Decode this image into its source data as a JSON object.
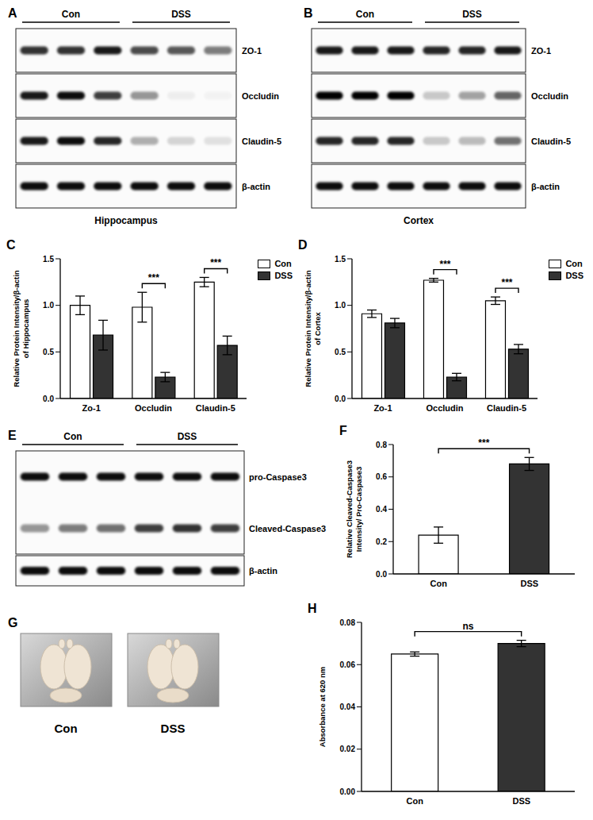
{
  "blots": [
    {
      "panel": "A",
      "groups": [
        "Con",
        "DSS"
      ],
      "caption": "Hippocampus",
      "boxes": [
        [
          {
            "label": "ZO-1",
            "intensity": [
              0.8,
              0.8,
              0.9,
              0.7,
              0.65,
              0.5
            ]
          }
        ],
        [
          {
            "label": "Occludin",
            "intensity": [
              0.9,
              0.95,
              0.75,
              0.4,
              0.05,
              0.03
            ]
          }
        ],
        [
          {
            "label": "Claudin-5",
            "intensity": [
              0.9,
              0.95,
              0.85,
              0.3,
              0.15,
              0.1
            ]
          }
        ],
        [
          {
            "label": "β-actin",
            "intensity": [
              0.95,
              0.95,
              0.95,
              0.95,
              0.95,
              0.95
            ]
          }
        ]
      ]
    },
    {
      "panel": "B",
      "groups": [
        "Con",
        "DSS"
      ],
      "caption": "Cortex",
      "boxes": [
        [
          {
            "label": "ZO-1",
            "intensity": [
              0.9,
              0.9,
              0.9,
              0.85,
              0.85,
              0.9
            ]
          }
        ],
        [
          {
            "label": "Occludin",
            "intensity": [
              1,
              1,
              1,
              0.2,
              0.35,
              0.6
            ]
          }
        ],
        [
          {
            "label": "Claudin-5",
            "intensity": [
              0.85,
              0.85,
              0.85,
              0.2,
              0.25,
              0.55
            ]
          }
        ],
        [
          {
            "label": "β-actin",
            "intensity": [
              0.95,
              0.95,
              0.95,
              0.95,
              0.95,
              0.95
            ]
          }
        ]
      ]
    },
    {
      "panel": "E",
      "groups": [
        "Con",
        "DSS"
      ],
      "boxes": [
        [
          {
            "label": "pro-Caspase3",
            "intensity": [
              0.95,
              0.95,
              0.95,
              0.95,
              0.95,
              0.95
            ]
          },
          {
            "label": "Cleaved-Caspase3",
            "intensity": [
              0.4,
              0.5,
              0.55,
              0.75,
              0.8,
              0.75
            ]
          }
        ],
        [
          {
            "label": "β-actin",
            "intensity": [
              0.95,
              0.95,
              0.95,
              0.95,
              0.95,
              0.95
            ]
          }
        ]
      ]
    }
  ],
  "photos": {
    "panel": "G",
    "labels": [
      "Con",
      "DSS"
    ]
  },
  "chart_data": [
    {
      "title": "C",
      "type": "bar",
      "categories": [
        "Zo-1",
        "Occludin",
        "Claudin-5"
      ],
      "series": [
        {
          "name": "Con",
          "color": "#ffffff",
          "values": [
            1.0,
            0.98,
            1.25
          ],
          "errors": [
            0.1,
            0.16,
            0.05
          ]
        },
        {
          "name": "DSS",
          "color": "#333333",
          "values": [
            0.68,
            0.23,
            0.57
          ],
          "errors": [
            0.16,
            0.05,
            0.1
          ]
        }
      ],
      "y_label": "Relative Protein Intensity/β-actin\nof Hippocampus",
      "ylim": [
        0,
        1.5
      ],
      "yticks": [
        {
          "value": 0,
          "label": "0.0"
        },
        0.5,
        {
          "value": 1,
          "label": "1.0"
        },
        1.5
      ],
      "legend": "upper right",
      "annotations": [
        {
          "category": "Occludin",
          "text": "***"
        },
        {
          "category": "Claudin-5",
          "text": "***"
        }
      ]
    },
    {
      "title": "D",
      "type": "bar",
      "categories": [
        "Zo-1",
        "Occludin",
        "Claudin-5"
      ],
      "series": [
        {
          "name": "Con",
          "color": "#ffffff",
          "values": [
            0.91,
            1.27,
            1.05
          ],
          "errors": [
            0.04,
            0.02,
            0.04
          ]
        },
        {
          "name": "DSS",
          "color": "#333333",
          "values": [
            0.81,
            0.23,
            0.53
          ],
          "errors": [
            0.05,
            0.04,
            0.05
          ]
        }
      ],
      "y_label": "Relative Protein Intensity/β-actin\nof Cortex",
      "ylim": [
        0,
        1.5
      ],
      "yticks": [
        {
          "value": 0,
          "label": "0.0"
        },
        0.5,
        {
          "value": 1,
          "label": "1.0"
        },
        1.5
      ],
      "legend": "upper right",
      "annotations": [
        {
          "category": "Occludin",
          "text": "***"
        },
        {
          "category": "Claudin-5",
          "text": "***"
        }
      ]
    },
    {
      "title": "F",
      "type": "bar",
      "categories": [
        "Con",
        "DSS"
      ],
      "values": [
        0.24,
        0.68
      ],
      "errors": [
        0.05,
        0.04
      ],
      "colors": [
        "#ffffff",
        "#333333"
      ],
      "y_label": "Relative Cleaved-Caspase3\nIntensity/ Pro-Caspase3",
      "ylim": [
        0,
        0.8
      ],
      "yticks": [
        {
          "value": 0,
          "label": "0.0"
        },
        0.2,
        0.4,
        0.6,
        0.8
      ],
      "annotations": [
        {
          "between": [
            "Con",
            "DSS"
          ],
          "text": "***"
        }
      ]
    },
    {
      "title": "H",
      "type": "bar",
      "categories": [
        "Con",
        "DSS"
      ],
      "values": [
        0.065,
        0.07
      ],
      "errors": [
        0.001,
        0.0015
      ],
      "colors": [
        "#ffffff",
        "#333333"
      ],
      "y_label": "Absorbance at 620 nm",
      "ylim": [
        0,
        0.08
      ],
      "yticks": [
        {
          "value": 0,
          "label": "0.00"
        },
        {
          "value": 0.02,
          "label": "0.02"
        },
        {
          "value": 0.04,
          "label": "0.04"
        },
        {
          "value": 0.06,
          "label": "0.06"
        },
        {
          "value": 0.08,
          "label": "0.08"
        }
      ],
      "annotations": [
        {
          "between": [
            "Con",
            "DSS"
          ],
          "text": "ns"
        }
      ]
    }
  ]
}
